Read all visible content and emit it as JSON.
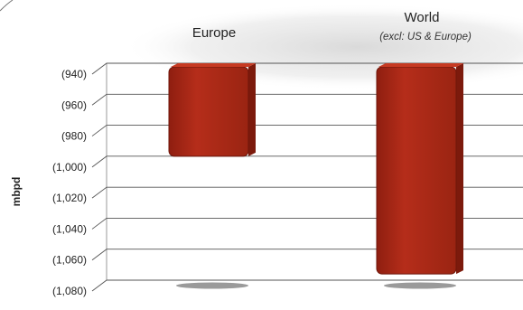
{
  "chart_data": {
    "type": "bar",
    "orientation": "inverted-axis",
    "categories": [
      {
        "label": "Europe",
        "sublabel": ""
      },
      {
        "label": "World",
        "sublabel": "(excl: US & Europe)"
      }
    ],
    "values": [
      -993,
      -1069
    ],
    "ylabel": "mbpd",
    "ylim": [
      -940,
      -1080
    ],
    "yticks": [
      "(940)",
      "(960)",
      "(980)",
      "(1,000)",
      "(1,020)",
      "(1,040)",
      "(1,060)",
      "(1,080)"
    ],
    "grid": true,
    "legend": "none",
    "colors": {
      "bar": "#b02a18",
      "bar_top": "#c63a22",
      "bar_side": "#7c1a0c",
      "grid": "#555555",
      "shadow": "#9a9a9a"
    }
  }
}
